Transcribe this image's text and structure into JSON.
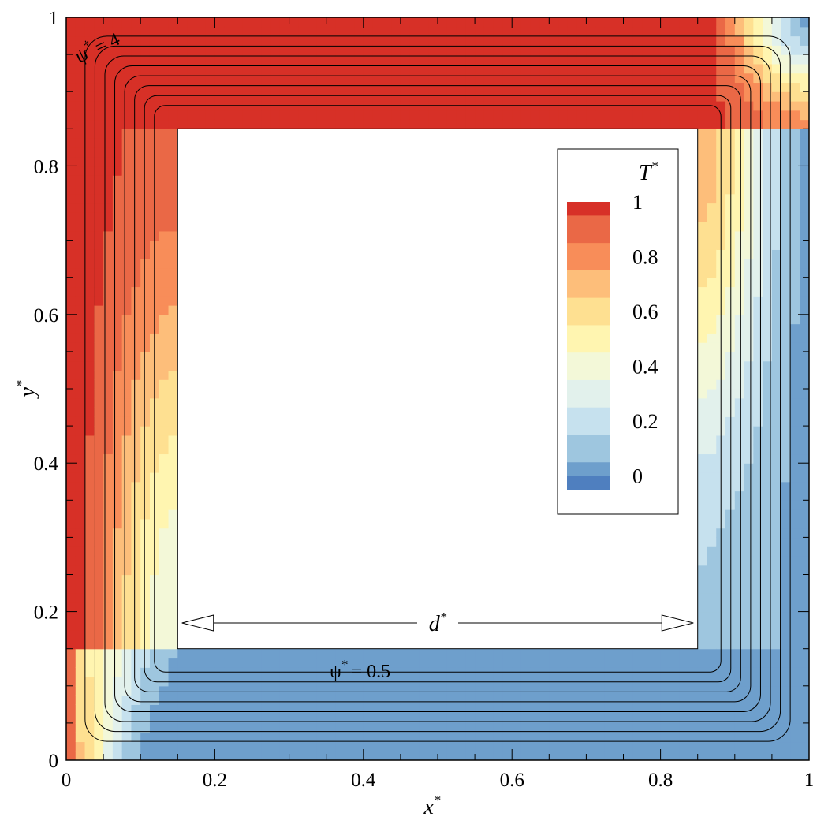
{
  "chart_data": {
    "type": "heatmap",
    "title": "",
    "xlabel": {
      "base": "x",
      "sup": "*"
    },
    "ylabel": {
      "base": "y",
      "sup": "*"
    },
    "xlim": [
      0,
      1
    ],
    "ylim": [
      0,
      1
    ],
    "x_ticks": [
      {
        "value": 0,
        "label": "0"
      },
      {
        "value": 0.2,
        "label": "0.2"
      },
      {
        "value": 0.4,
        "label": "0.4"
      },
      {
        "value": 0.6,
        "label": "0.6"
      },
      {
        "value": 0.8,
        "label": "0.8"
      },
      {
        "value": 1,
        "label": "1"
      }
    ],
    "y_ticks": [
      {
        "value": 0,
        "label": "0"
      },
      {
        "value": 0.2,
        "label": "0.2"
      },
      {
        "value": 0.4,
        "label": "0.4"
      },
      {
        "value": 0.6,
        "label": "0.6"
      },
      {
        "value": 0.8,
        "label": "0.8"
      },
      {
        "value": 1,
        "label": "1"
      }
    ],
    "grid": false,
    "inner_block": {
      "x": [
        0.15,
        0.85
      ],
      "y": [
        0.15,
        0.85
      ]
    },
    "legend": {
      "title": {
        "base": "T",
        "sup": "*"
      },
      "placement": "inside inner block, upper right",
      "bands": [
        {
          "min": 0.95,
          "max": 1.0,
          "color": "#d73027"
        },
        {
          "min": 0.85,
          "max": 0.95,
          "color": "#ea6846"
        },
        {
          "min": 0.75,
          "max": 0.85,
          "color": "#f88d59"
        },
        {
          "min": 0.65,
          "max": 0.75,
          "color": "#fdbe7a"
        },
        {
          "min": 0.55,
          "max": 0.65,
          "color": "#fee091"
        },
        {
          "min": 0.45,
          "max": 0.55,
          "color": "#fff5b0"
        },
        {
          "min": 0.35,
          "max": 0.45,
          "color": "#f3f8d8"
        },
        {
          "min": 0.25,
          "max": 0.35,
          "color": "#e2f1ec"
        },
        {
          "min": 0.15,
          "max": 0.25,
          "color": "#c6e1ee"
        },
        {
          "min": 0.05,
          "max": 0.15,
          "color": "#9ec6df"
        },
        {
          "min": 0.0,
          "max": 0.05,
          "color": "#6e9fcc"
        },
        {
          "min": -0.05,
          "max": 0.0,
          "color": "#4f7fbf"
        }
      ],
      "labels": [
        {
          "value": 1,
          "text": "1"
        },
        {
          "value": 0.8,
          "text": "0.8"
        },
        {
          "value": 0.6,
          "text": "0.6"
        },
        {
          "value": 0.4,
          "text": "0.4"
        },
        {
          "value": 0.2,
          "text": "0.2"
        },
        {
          "value": 0,
          "text": "0"
        }
      ]
    },
    "streamlines": {
      "outer_annotation": {
        "base": "ψ",
        "sup": "*",
        "rest": "= 4"
      },
      "inner_annotation": {
        "base": "ψ",
        "sup": "*",
        "rest": "= 0.5"
      },
      "levels": [
        4,
        3.5,
        3,
        2.5,
        2,
        1.5,
        1,
        0.5
      ]
    },
    "dimension_annotation": {
      "base": "d",
      "sup": "*",
      "span": [
        0.16,
        0.84
      ],
      "y": 0.19
    }
  }
}
